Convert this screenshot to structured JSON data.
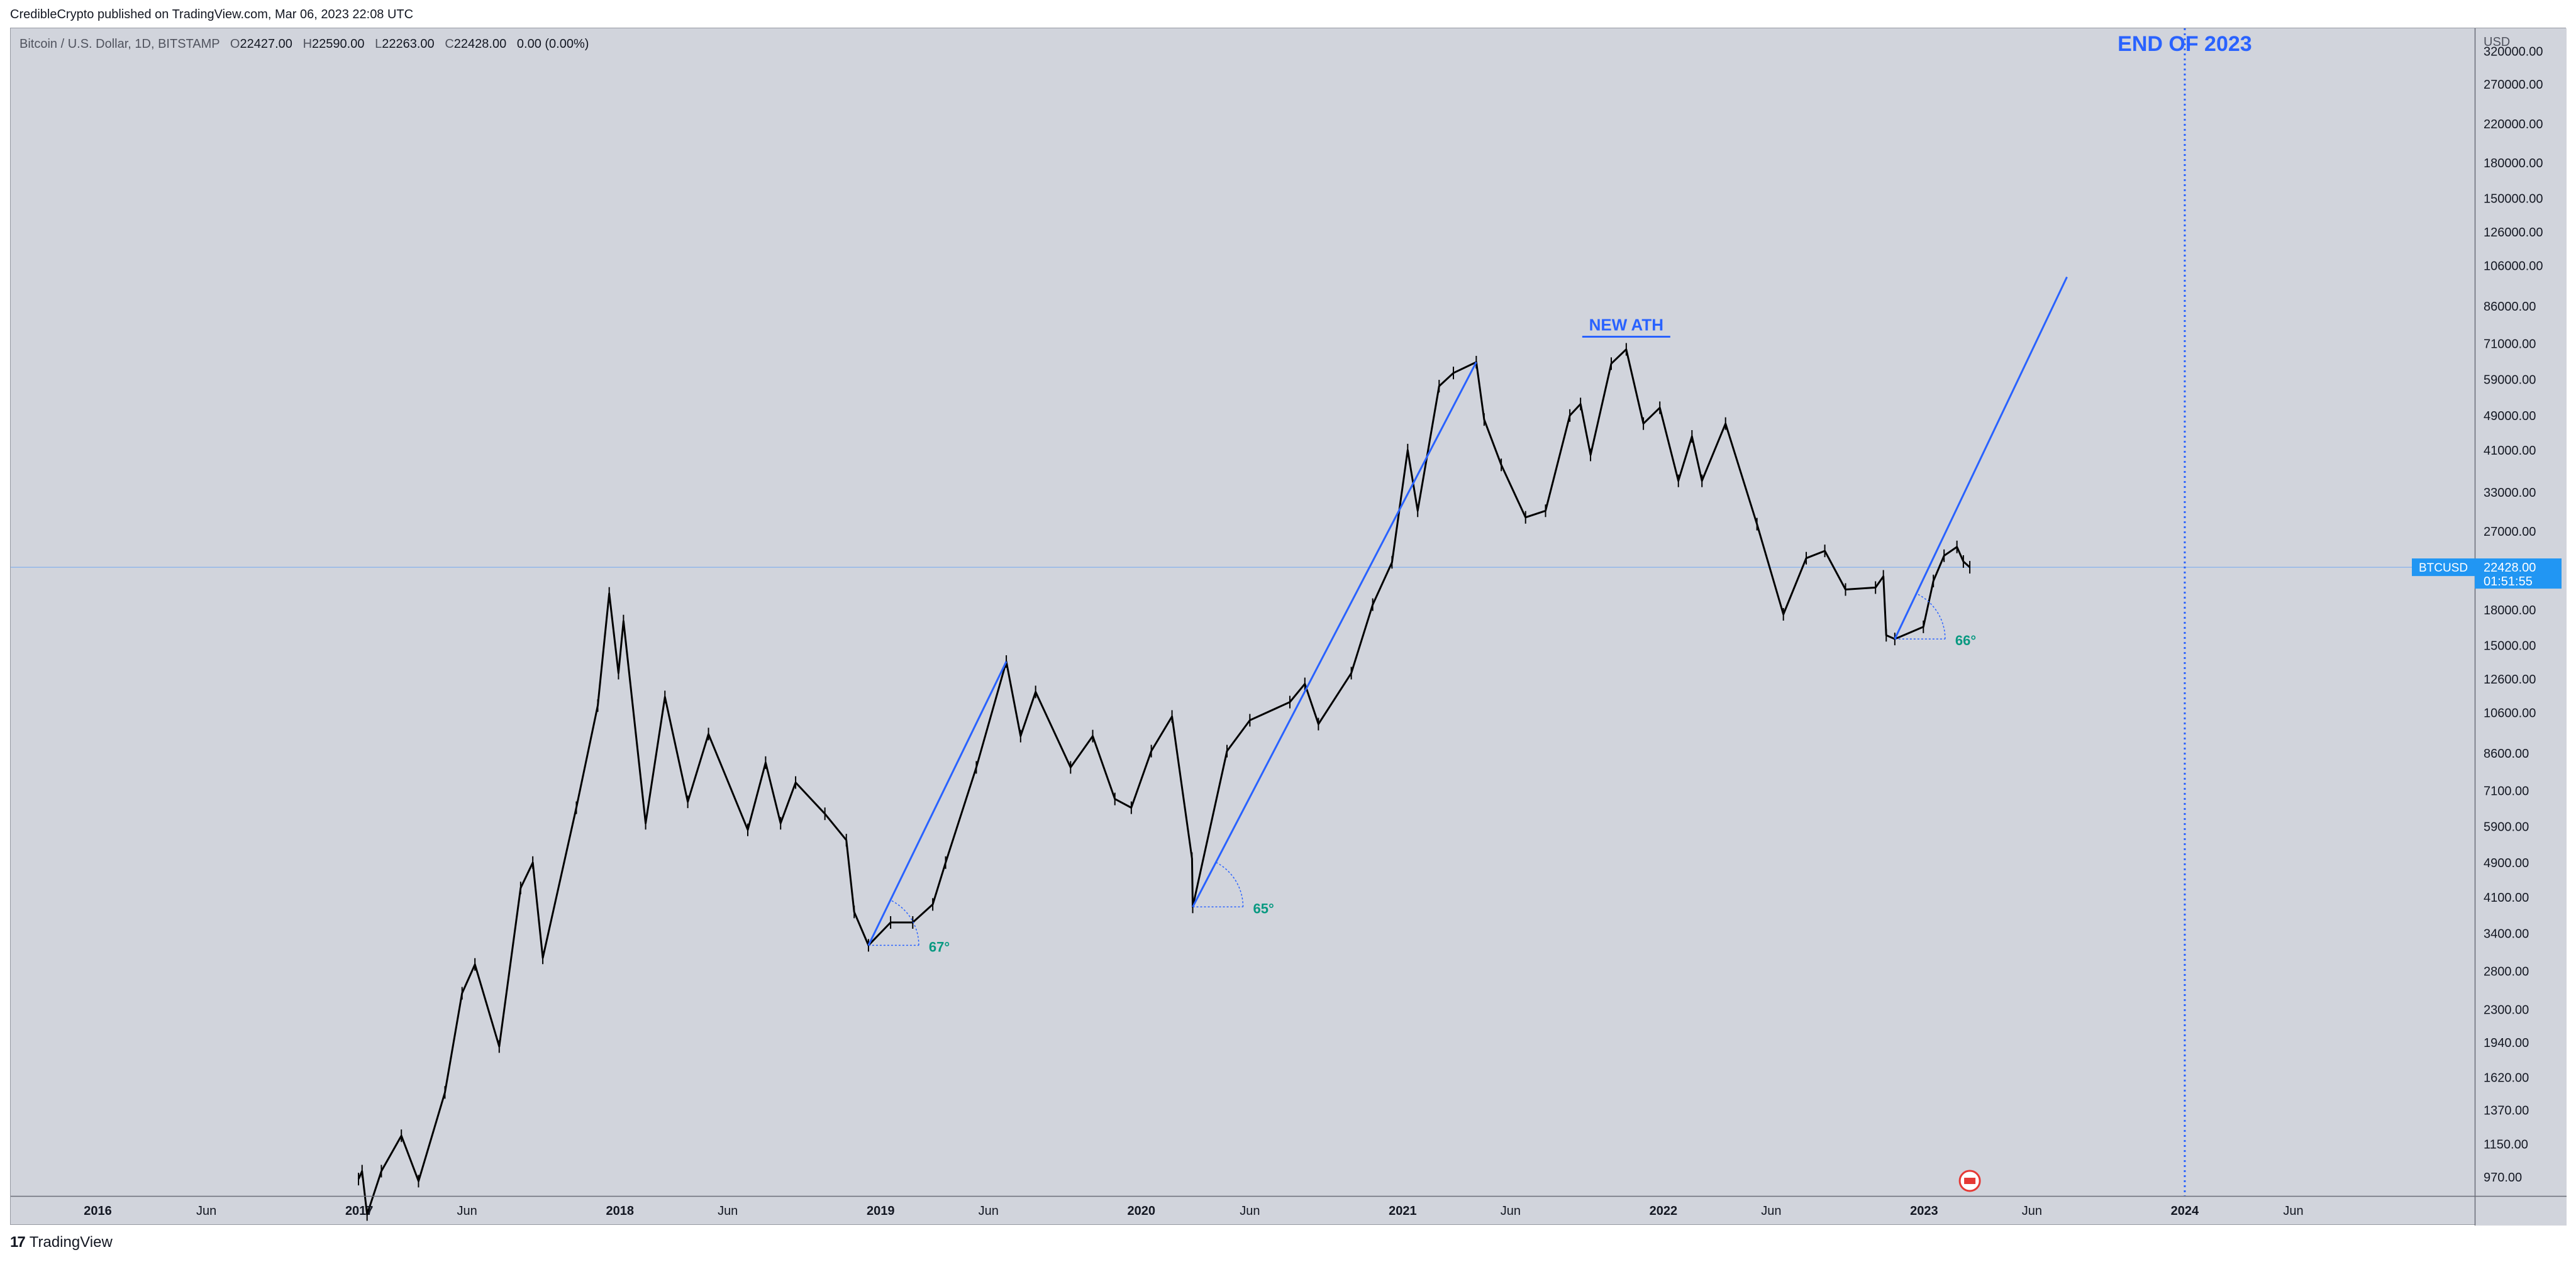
{
  "header": {
    "publisher_line": "CredibleCrypto published on TradingView.com, Mar 06, 2023 22:08 UTC"
  },
  "legend": {
    "symbol": "Bitcoin / U.S. Dollar, 1D, BITSTAMP",
    "o_label": "O",
    "o_value": "22427.00",
    "h_label": "H",
    "h_value": "22590.00",
    "l_label": "L",
    "l_value": "22263.00",
    "c_label": "C",
    "c_value": "22428.00",
    "change": "0.00 (0.00%)"
  },
  "price_axis": {
    "currency": "USD",
    "current_symbol": "BTCUSD",
    "current_price": "22428.00",
    "countdown": "01:51:55"
  },
  "annotations": {
    "end_of_2023": "END OF 2023",
    "new_ath": "NEW ATH",
    "angle_1": "67°",
    "angle_2": "65°",
    "angle_3": "66°"
  },
  "footer": {
    "brand_mark": "17",
    "brand": "TradingView"
  },
  "colors": {
    "background": "#d1d4dc",
    "candles": "#000000",
    "trendline": "#2962ff",
    "annotation_text": "#2962ff",
    "angle_text": "#089981",
    "price_label": "#2196f3"
  },
  "chart_data": {
    "type": "line",
    "y_scale": "log",
    "ylim": [
      880,
      360000
    ],
    "y_ticks": [
      "970.00",
      "1150.00",
      "1370.00",
      "1620.00",
      "1940.00",
      "2300.00",
      "2800.00",
      "3400.00",
      "4100.00",
      "4900.00",
      "5900.00",
      "7100.00",
      "8600.00",
      "10600.00",
      "12600.00",
      "15000.00",
      "18000.00",
      "22000.00",
      "27000.00",
      "33000.00",
      "41000.00",
      "49000.00",
      "59000.00",
      "71000.00",
      "86000.00",
      "106000.00",
      "126000.00",
      "150000.00",
      "180000.00",
      "220000.00",
      "270000.00",
      "320000.00"
    ],
    "x_ticks": [
      "2016",
      "Jun",
      "2017",
      "Jun",
      "2018",
      "Jun",
      "2019",
      "Jun",
      "2020",
      "Jun",
      "2021",
      "Jun",
      "2022",
      "Jun",
      "2023",
      "Jun",
      "2024",
      "Jun"
    ],
    "x_tick_dates": [
      "2016-01-01",
      "2016-06-01",
      "2017-01-01",
      "2017-06-01",
      "2018-01-01",
      "2018-06-01",
      "2019-01-01",
      "2019-06-01",
      "2020-01-01",
      "2020-06-01",
      "2021-01-01",
      "2021-06-01",
      "2022-01-01",
      "2022-06-01",
      "2023-01-01",
      "2023-06-01",
      "2024-01-01",
      "2024-06-01"
    ],
    "xlim": [
      "2015-09-01",
      "2025-02-10"
    ],
    "series": [
      {
        "x": [
          "2016-12-31",
          "2017-01-05",
          "2017-01-12",
          "2017-02-01",
          "2017-03-01",
          "2017-03-25",
          "2017-05-01",
          "2017-05-25",
          "2017-06-12",
          "2017-07-16",
          "2017-08-15",
          "2017-09-01",
          "2017-09-15",
          "2017-11-01",
          "2017-12-01",
          "2017-12-17",
          "2017-12-30",
          "2018-01-06",
          "2018-02-06",
          "2018-03-05",
          "2018-04-06",
          "2018-05-05",
          "2018-06-29",
          "2018-07-24",
          "2018-08-14",
          "2018-09-04",
          "2018-10-15",
          "2018-11-14",
          "2018-11-25",
          "2018-12-15",
          "2019-01-15",
          "2019-02-15",
          "2019-03-15",
          "2019-04-02",
          "2019-05-15",
          "2019-06-26",
          "2019-07-16",
          "2019-08-06",
          "2019-09-24",
          "2019-10-25",
          "2019-11-25",
          "2019-12-18",
          "2020-01-15",
          "2020-02-13",
          "2020-03-12",
          "2020-03-13",
          "2020-04-30",
          "2020-06-01",
          "2020-07-27",
          "2020-08-17",
          "2020-09-05",
          "2020-10-21",
          "2020-11-20",
          "2020-12-17",
          "2021-01-08",
          "2021-01-22",
          "2021-02-21",
          "2021-03-13",
          "2021-04-14",
          "2021-04-25",
          "2021-05-19",
          "2021-06-22",
          "2021-07-20",
          "2021-08-23",
          "2021-09-07",
          "2021-09-21",
          "2021-10-20",
          "2021-11-10",
          "2021-12-04",
          "2021-12-27",
          "2022-01-22",
          "2022-02-10",
          "2022-02-24",
          "2022-03-29",
          "2022-05-12",
          "2022-06-18",
          "2022-07-20",
          "2022-08-15",
          "2022-09-13",
          "2022-10-25",
          "2022-11-05",
          "2022-11-09",
          "2022-11-21",
          "2022-12-31",
          "2023-01-14",
          "2023-01-29",
          "2023-02-16",
          "2023-02-25",
          "2023-03-06"
        ],
        "y": [
          960,
          1000,
          800,
          1000,
          1200,
          950,
          1500,
          2500,
          2900,
          1900,
          4300,
          4900,
          3000,
          6500,
          11000,
          19600,
          13000,
          17000,
          6000,
          11500,
          6700,
          9500,
          5800,
          8200,
          6000,
          7400,
          6300,
          5500,
          3800,
          3200,
          3600,
          3600,
          3950,
          4900,
          8000,
          13800,
          9400,
          11800,
          8000,
          9400,
          6800,
          6500,
          8700,
          10400,
          5000,
          3900,
          8700,
          10200,
          11200,
          12300,
          10000,
          13000,
          18500,
          23000,
          41000,
          30000,
          57000,
          61000,
          64500,
          48000,
          38000,
          29000,
          30000,
          49000,
          52000,
          40000,
          64000,
          68900,
          47000,
          51000,
          35000,
          44000,
          35000,
          47000,
          28000,
          17600,
          23500,
          24400,
          20000,
          20200,
          21400,
          15800,
          15500,
          16500,
          20900,
          23800,
          24900,
          23100,
          22428
        ]
      }
    ],
    "trendlines": [
      {
        "x1": "2018-12-15",
        "y1": 3200,
        "x2": "2019-06-26",
        "y2": 13800
      },
      {
        "x1": "2020-03-13",
        "y1": 3900,
        "x2": "2021-04-14",
        "y2": 64500
      },
      {
        "x1": "2022-11-21",
        "y1": 15500,
        "x2": "2023-07-20",
        "y2": 100000
      }
    ],
    "event_line_x": "2024-01-01",
    "current_price_value": 22428
  }
}
